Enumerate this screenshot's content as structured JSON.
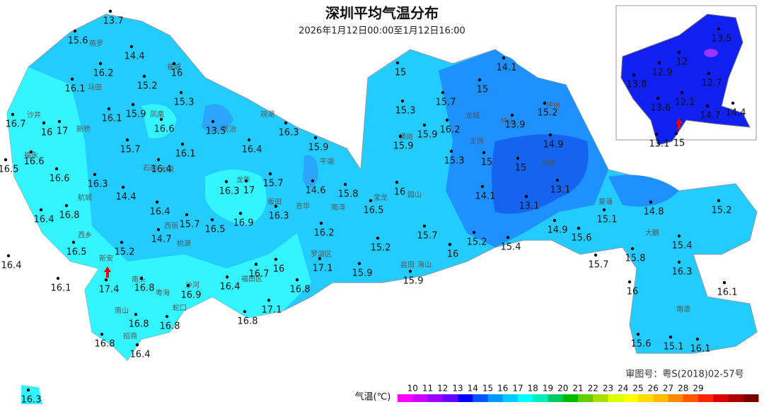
{
  "header": {
    "title": "深圳平均气温分布",
    "subtitle": "2026年1月12日00:00至1月12日16:00"
  },
  "stations": [
    13.7,
    15.6,
    14.4,
    16.2,
    16,
    15.2,
    16.1,
    15.3,
    16.1,
    15.9,
    16.6,
    13.5,
    16.3,
    16.7,
    16,
    17,
    15.7,
    16.1,
    16.4,
    15.9,
    16.6,
    16.4,
    16.5,
    16.6,
    16.3,
    16.3,
    17,
    15.7,
    14.6,
    15.8,
    16,
    14.4,
    16.4,
    16.8,
    16.4,
    15.7,
    16.5,
    16.9,
    16.3,
    16.2,
    16.5,
    14.7,
    15.2,
    16.5,
    15.2,
    15.7,
    16,
    15.2,
    15.4,
    16.4,
    16,
    16.7,
    17.1,
    15.9,
    15.9,
    16.1,
    17.4,
    16.8,
    16.9,
    16.4,
    16.8,
    17.1,
    16.8,
    16.8,
    16.8,
    16.8,
    16.4,
    16.3,
    15,
    14.1,
    15,
    15.3,
    15.7,
    16.2,
    15.9,
    15.9,
    15.2,
    13.9,
    14.9,
    15.3,
    15,
    15,
    14.1,
    13.1,
    13.1,
    14.9,
    15.6,
    15.1,
    14.8,
    15.2,
    15.7,
    15.8,
    15.4,
    16.3,
    16,
    16.1,
    15.6,
    15.1,
    16.1
  ],
  "inset_stations": [
    13.5,
    12,
    12.9,
    13.8,
    12.7,
    13.6,
    12.1,
    14.7,
    14.4,
    13.1,
    15
  ],
  "district_labels": [
    "燕罗",
    "新桥",
    "马田",
    "沙井",
    "福永",
    "航城",
    "西乡",
    "新安",
    "南头",
    "粤海",
    "沙河",
    "南山",
    "蛇口",
    "招商",
    "石岩",
    "凤凰",
    "大浪",
    "龙华",
    "观湖",
    "民治",
    "坂田",
    "吉华",
    "南湾",
    "平湖",
    "横岗",
    "龙城",
    "龙岗",
    "宝龙",
    "园山",
    "坪地",
    "坪山",
    "坑梓",
    "葵涌",
    "大鹏",
    "南澳",
    "福田区",
    "罗湖区",
    "盐田",
    "海山",
    "西丽",
    "桃源",
    "福城"
  ],
  "legend": {
    "title": "气温(℃)",
    "ticks": [
      10,
      11,
      12,
      13,
      14,
      15,
      16,
      17,
      18,
      19,
      20,
      21,
      22,
      23,
      24,
      25,
      26,
      27,
      28,
      29
    ],
    "colors": [
      "#ff00ff",
      "#cc00ff",
      "#9900ff",
      "#6600ff",
      "#0000ff",
      "#0055ff",
      "#0099ff",
      "#00ccff",
      "#00ffff",
      "#00eebb",
      "#00cc66",
      "#00bb00",
      "#66cc00",
      "#aadd00",
      "#ddff00",
      "#ffff00",
      "#ffdd00",
      "#ffbb00",
      "#ff8800",
      "#ff5500",
      "#ff2200",
      "#dd0000",
      "#aa0000",
      "#770000"
    ]
  },
  "approval": "审图号：粤S(2018)02-57号"
}
